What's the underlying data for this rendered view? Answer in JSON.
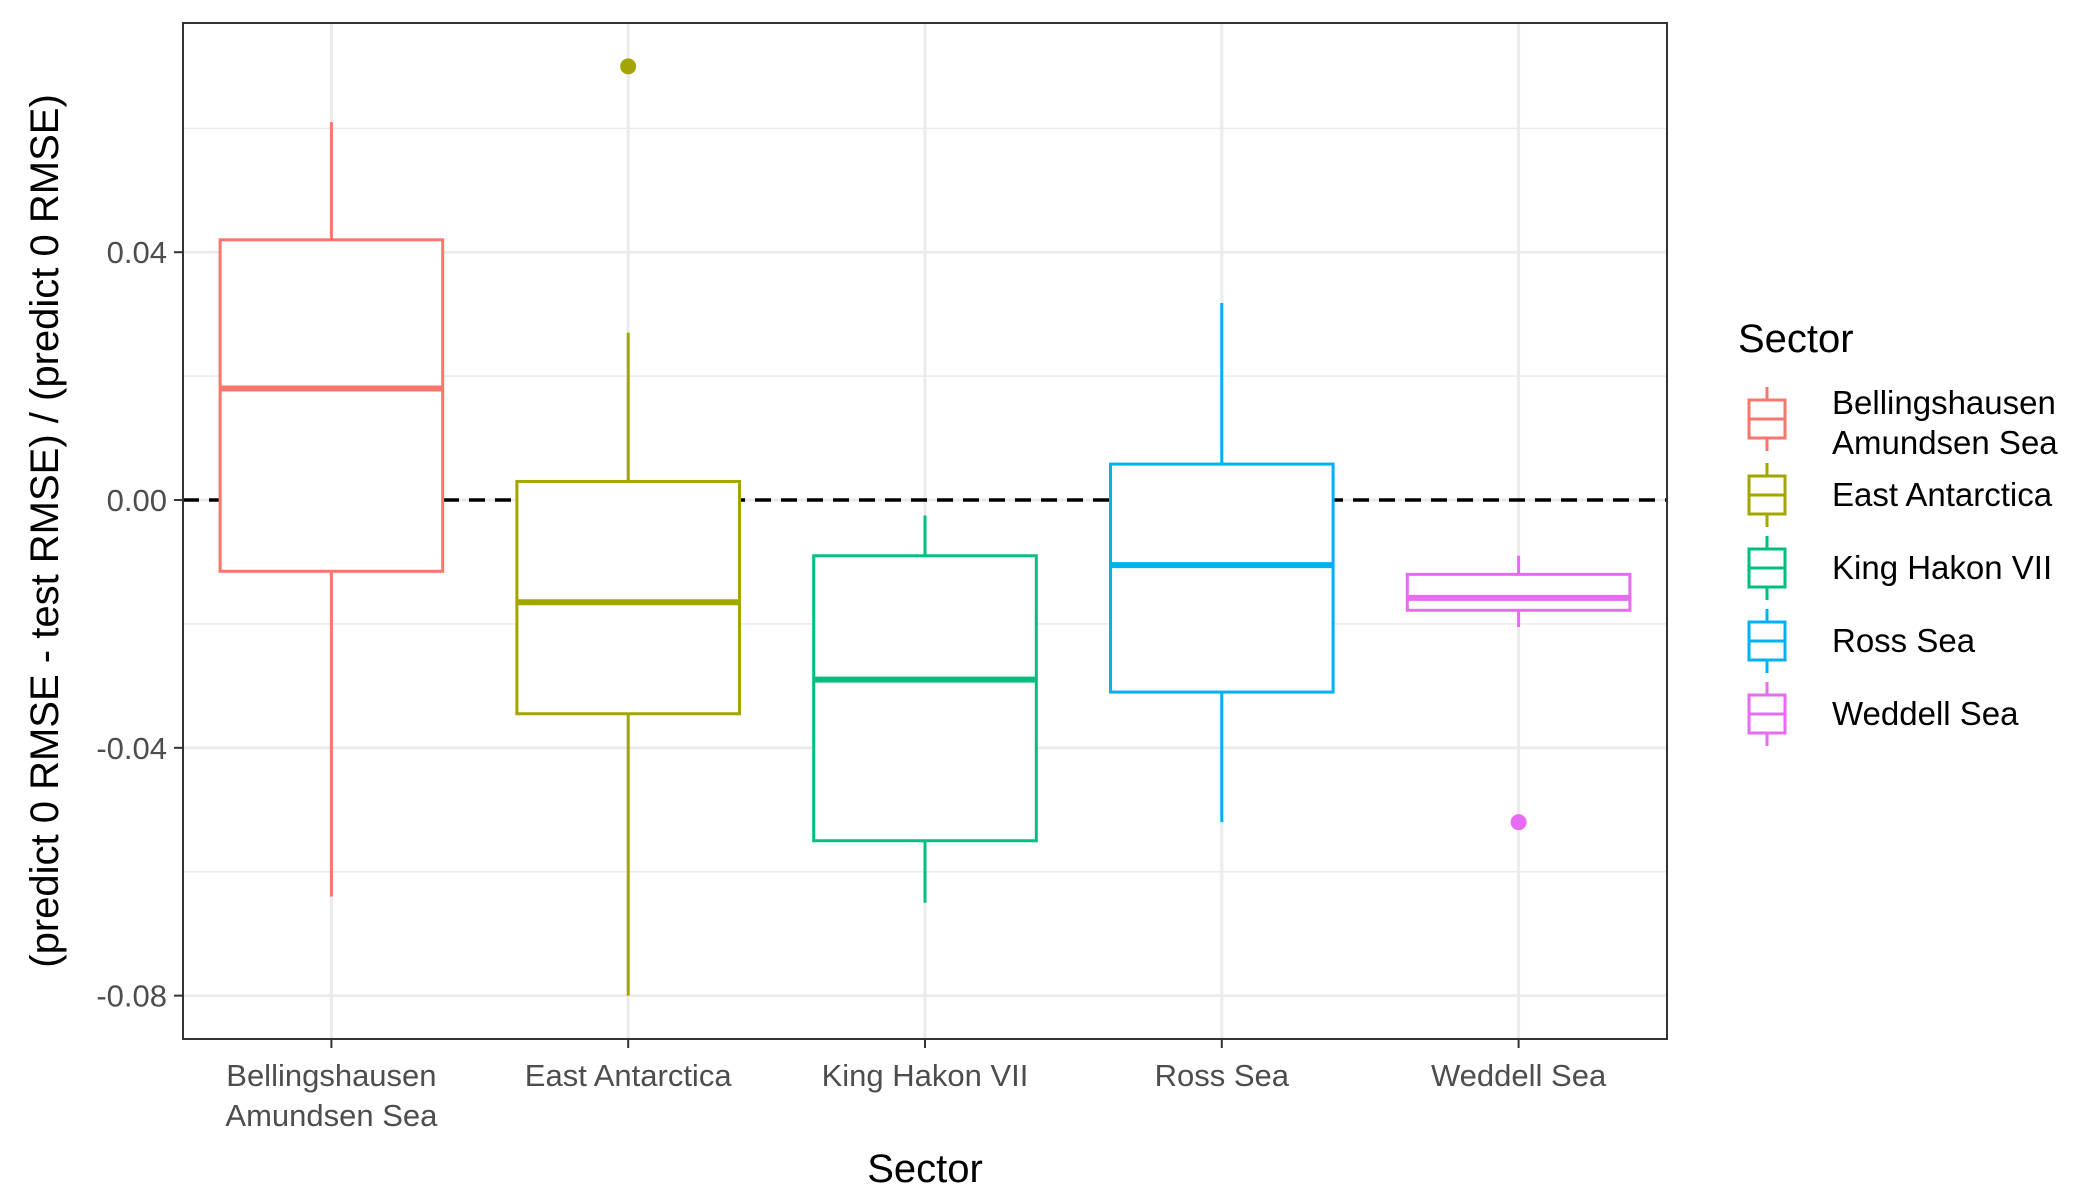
{
  "chart_data": {
    "type": "boxplot",
    "xlabel": "Sector",
    "ylabel": "(predict 0 RMSE - test RMSE) / (predict 0 RMSE)",
    "ylim": [
      -0.087,
      0.077
    ],
    "yticks": [
      -0.08,
      -0.04,
      0.0,
      0.04
    ],
    "ytick_labels": [
      "-0.08",
      "-0.04",
      "0.00",
      "0.04"
    ],
    "reference_line": {
      "y": 0,
      "style": "dashed"
    },
    "grid": true,
    "legend": {
      "title": "Sector",
      "position": "right"
    },
    "categories": [
      "Bellingshausen\nAmundsen Sea",
      "East Antarctica",
      "King Hakon VII",
      "Ross Sea",
      "Weddell Sea"
    ],
    "series": [
      {
        "name": "Bellingshausen\nAmundsen Sea",
        "color": "#F8766D",
        "whisker_low": -0.064,
        "q1": -0.0115,
        "median": 0.018,
        "q3": 0.042,
        "whisker_high": 0.061,
        "outliers": []
      },
      {
        "name": "East Antarctica",
        "color": "#A3A500",
        "whisker_low": -0.08,
        "q1": -0.0345,
        "median": -0.0165,
        "q3": 0.003,
        "whisker_high": 0.027,
        "outliers": [
          0.07
        ]
      },
      {
        "name": "King Hakon VII",
        "color": "#00BF7D",
        "whisker_low": -0.065,
        "q1": -0.055,
        "median": -0.029,
        "q3": -0.009,
        "whisker_high": -0.0025,
        "outliers": []
      },
      {
        "name": "Ross Sea",
        "color": "#00B0F6",
        "whisker_low": -0.052,
        "q1": -0.031,
        "median": -0.0105,
        "q3": 0.0058,
        "whisker_high": 0.0318,
        "outliers": []
      },
      {
        "name": "Weddell Sea",
        "color": "#E76BF3",
        "whisker_low": -0.0205,
        "q1": -0.0178,
        "median": -0.0158,
        "q3": -0.012,
        "whisker_high": -0.009,
        "outliers": [
          -0.052
        ]
      }
    ]
  }
}
